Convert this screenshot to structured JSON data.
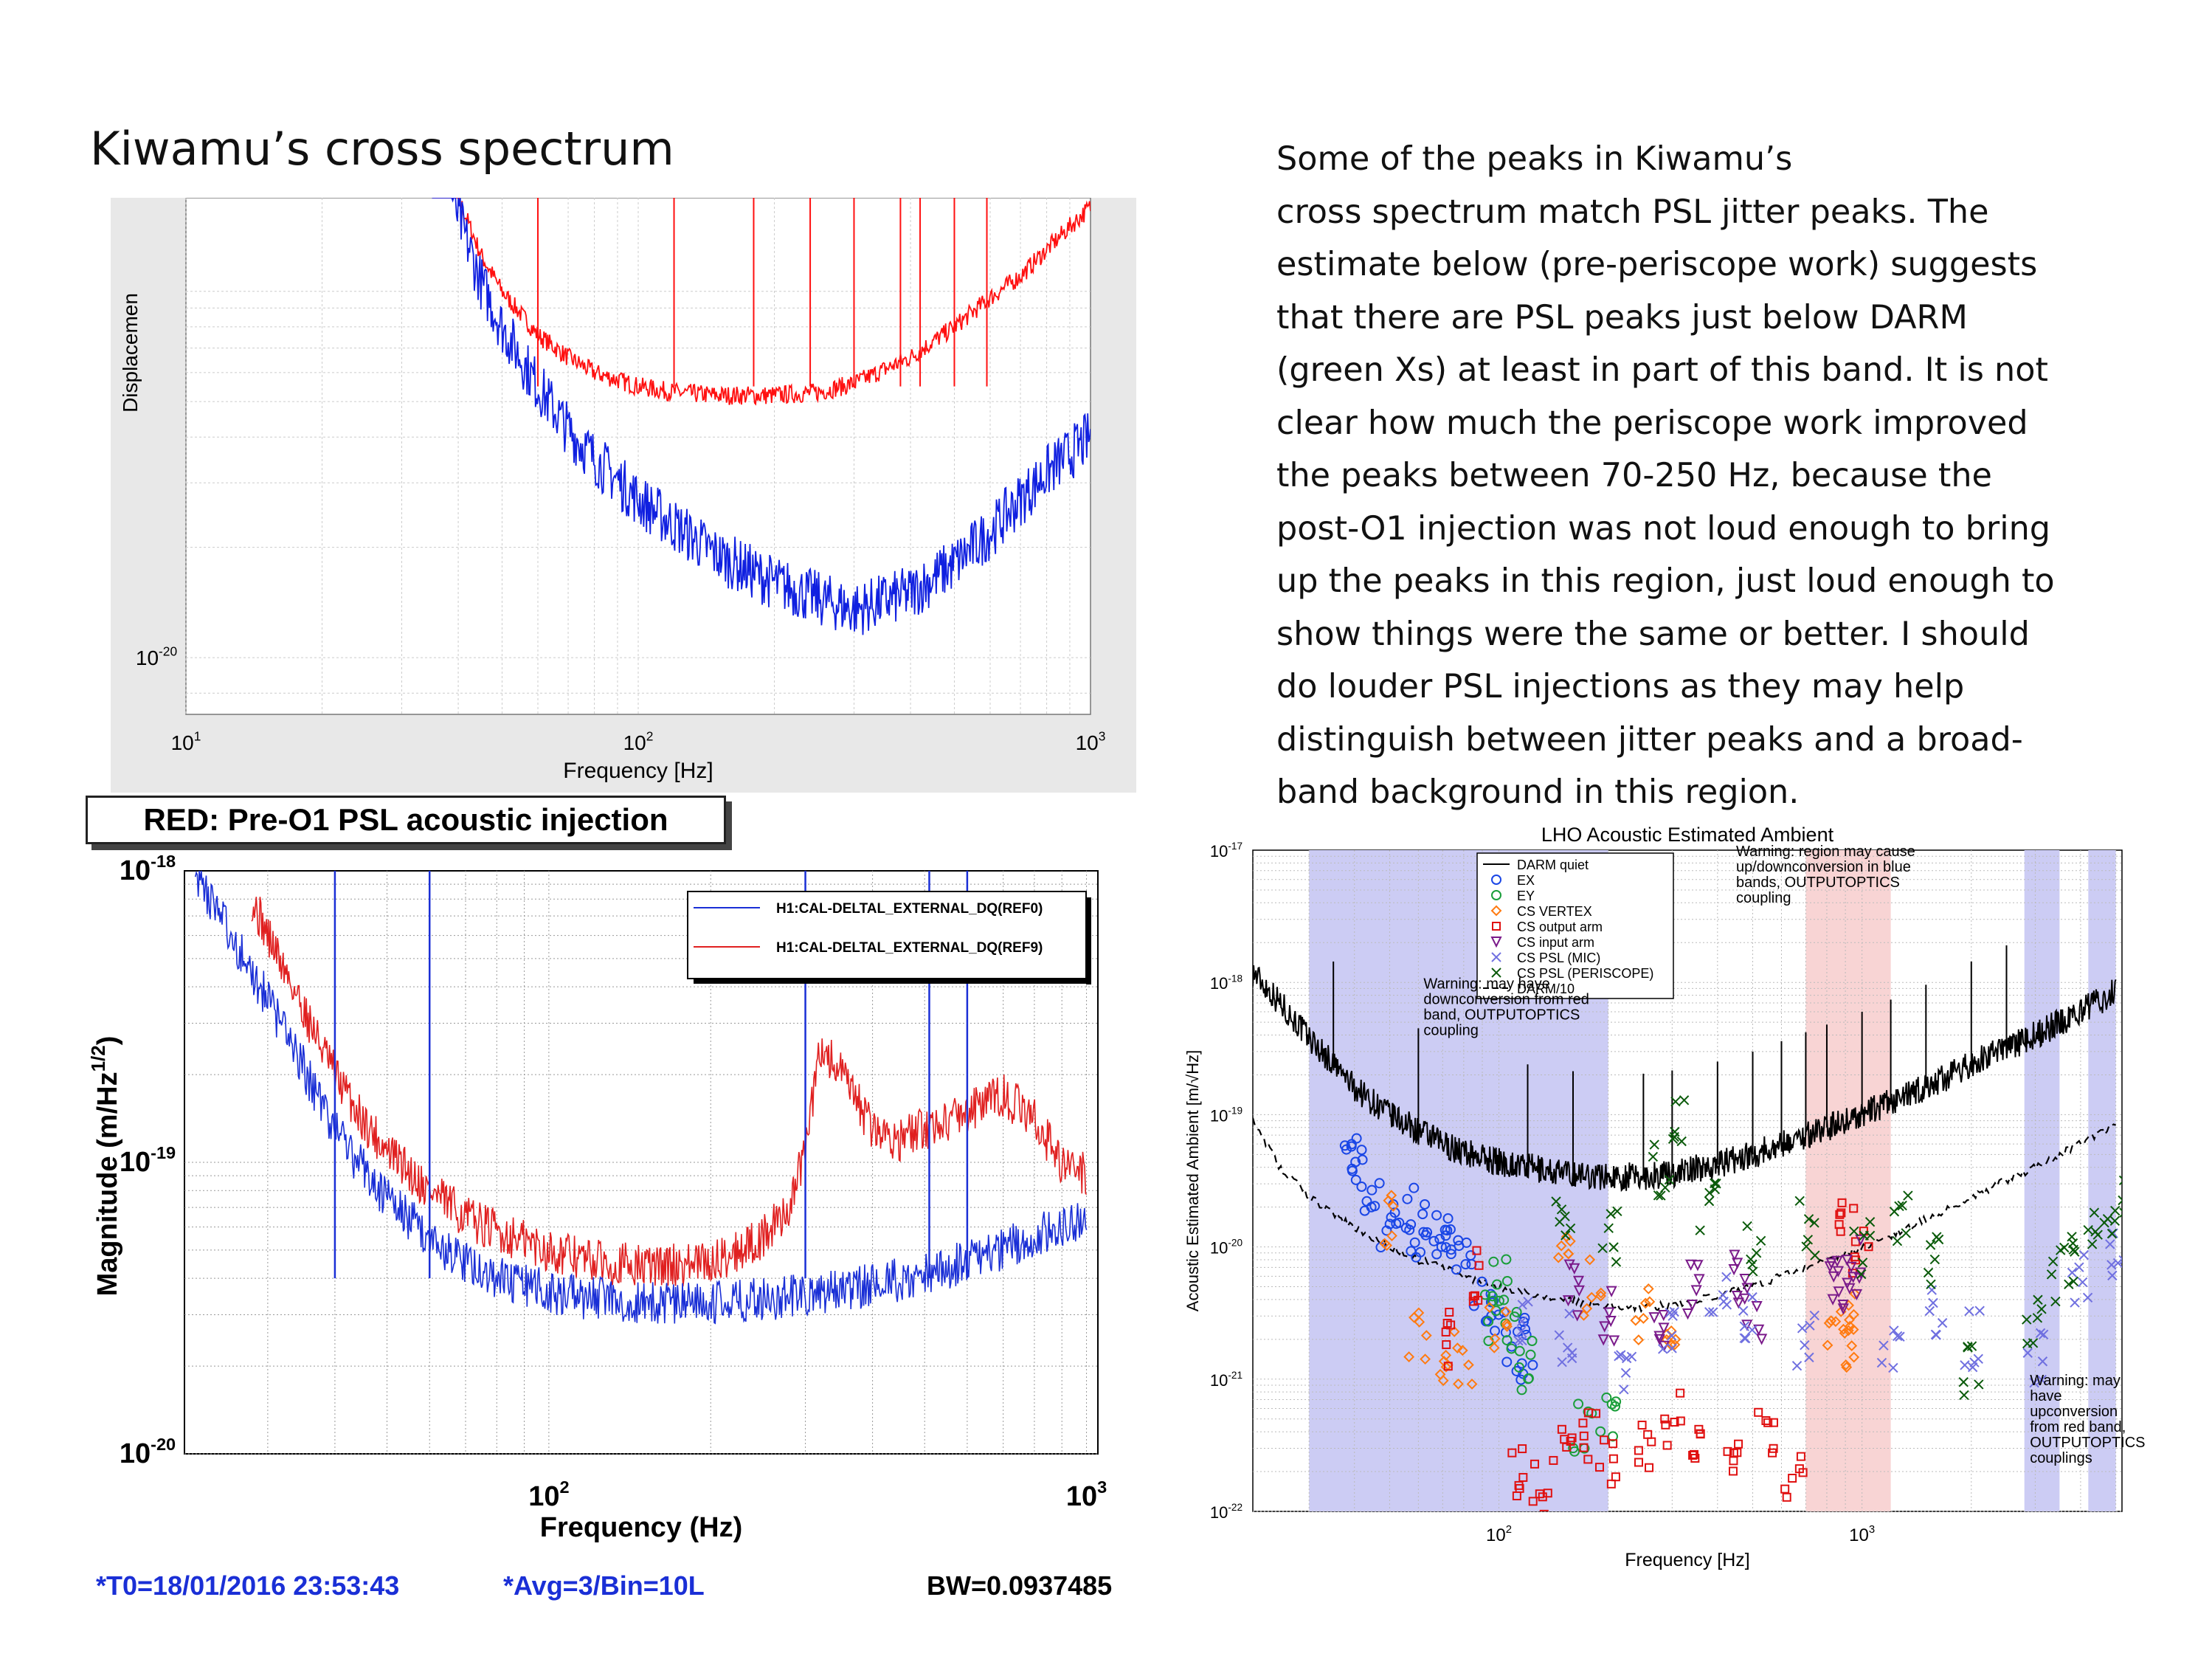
{
  "slide": {
    "title": "Kiwamu’s cross spectrum",
    "description_lines": [
      "Some of the peaks in Kiwamu’s",
      "cross spectrum match PSL jitter peaks. The",
      "estimate below (pre-periscope work) suggests",
      "that there are PSL peaks just below DARM",
      "(green Xs) at least in part of this band. It is not",
      "clear how much the periscope work improved",
      "the peaks between 70-250 Hz, because the",
      "post-O1 injection was not loud enough to bring",
      "up the peaks in this region, just loud enough to",
      "show things were the same or better. I should",
      "do louder PSL injections as they may help",
      "distinguish between jitter peaks and a broad-",
      "band background in this region."
    ],
    "caption": "RED: Pre-O1 PSL acoustic injection",
    "footer": {
      "t0": "*T0=18/01/2016 23:53:43",
      "avg": "*Avg=3/Bin=10L",
      "bw": "BW=0.0937485"
    }
  },
  "chart_data": [
    {
      "type": "line",
      "title": "",
      "xlabel": "Frequency [Hz]",
      "ylabel": "Displacemen",
      "x_scale": "log",
      "y_scale": "log",
      "xlim": [
        10,
        1000
      ],
      "x_ticks": [
        {
          "v": 10,
          "b": "10",
          "e": "1"
        },
        {
          "v": 100,
          "b": "10",
          "e": "2"
        },
        {
          "v": 1000,
          "b": "10",
          "e": "3"
        }
      ],
      "y_ticks": [
        {
          "v": 1e-20,
          "b": "10",
          "e": "-20"
        }
      ],
      "series": [
        {
          "color": "#ff1010",
          "x": [
            35,
            40,
            45,
            50,
            60,
            70,
            80,
            100,
            120,
            150,
            200,
            250,
            300,
            400,
            500,
            600,
            700,
            800,
            900,
            1000
          ],
          "y": [
            3.2e-19,
            1.8e-19,
            1.25e-19,
            1e-19,
            7.6e-20,
            6.6e-20,
            6e-20,
            5.5e-20,
            5.3e-20,
            5.2e-20,
            5.2e-20,
            5.3e-20,
            5.6e-20,
            6.6e-20,
            8e-20,
            9.6e-20,
            1.1e-19,
            1.3e-19,
            1.5e-19,
            1.7e-19
          ]
        },
        {
          "color": "#1020e0",
          "x": [
            35,
            40,
            45,
            50,
            60,
            70,
            80,
            100,
            120,
            150,
            200,
            250,
            300,
            400,
            500,
            600,
            700,
            800,
            900,
            1000
          ],
          "y": [
            3e-19,
            1.6e-19,
            1.05e-19,
            8e-20,
            5.5e-20,
            4.2e-20,
            3.5e-20,
            2.7e-20,
            2.3e-20,
            1.9e-20,
            1.6e-20,
            1.45e-20,
            1.35e-20,
            1.5e-20,
            1.8e-20,
            2.2e-20,
            2.7e-20,
            3.2e-20,
            3.6e-20,
            4e-20
          ]
        }
      ]
    },
    {
      "type": "line",
      "title": "",
      "xlabel": "Frequency (Hz)",
      "ylabel": "Magnitude (m/Hz^1/2)",
      "x_scale": "log",
      "y_scale": "log",
      "xlim": [
        21,
        1050
      ],
      "ylim": [
        1e-20,
        1e-18
      ],
      "x_ticks": [
        {
          "v": 100,
          "b": "10",
          "e": "2"
        },
        {
          "v": 1000,
          "b": "10",
          "e": "3"
        }
      ],
      "y_ticks": [
        {
          "v": 1e-18,
          "b": "10",
          "e": "-18"
        },
        {
          "v": 1e-19,
          "b": "10",
          "e": "-19"
        },
        {
          "v": 1e-20,
          "b": "10",
          "e": "-20"
        }
      ],
      "legend": "top-right",
      "series": [
        {
          "name": "H1:CAL-DELTAL_EXTERNAL_DQ(REF0)",
          "color": "#1a2fd6",
          "x": [
            22,
            25,
            28,
            30,
            33,
            36,
            40,
            45,
            50,
            60,
            70,
            80,
            100,
            120,
            150,
            200,
            250,
            300,
            400,
            500,
            600,
            700,
            800,
            900,
            1000
          ],
          "y": [
            1e-18,
            6.5e-19,
            4.5e-19,
            3.6e-19,
            2.6e-19,
            1.9e-19,
            1.3e-19,
            9.5e-20,
            7.5e-20,
            5.5e-20,
            4.5e-20,
            4e-20,
            3.6e-20,
            3.4e-20,
            3.3e-20,
            3.3e-20,
            3.4e-20,
            3.5e-20,
            3.8e-20,
            4.1e-20,
            4.6e-20,
            5e-20,
            5.6e-20,
            6.1e-20,
            6.6e-20
          ]
        },
        {
          "name": "H1:CAL-DELTAL_EXTERNAL_DQ(REF9)",
          "color": "#e02020",
          "x": [
            28,
            30,
            33,
            36,
            40,
            45,
            50,
            60,
            70,
            80,
            100,
            120,
            150,
            200,
            250,
            280,
            300,
            320,
            350,
            400,
            450,
            500,
            600,
            700,
            800,
            900,
            1000
          ],
          "y": [
            8e-19,
            6e-19,
            4.2e-19,
            3e-19,
            2e-19,
            1.4e-19,
            1.1e-19,
            8e-20,
            6.5e-20,
            5.8e-20,
            5e-20,
            4.6e-20,
            4.4e-20,
            4.5e-20,
            5.5e-20,
            7e-20,
            1.1e-19,
            2.5e-19,
            2e-19,
            1.3e-19,
            1.2e-19,
            1.3e-19,
            1.5e-19,
            1.7e-19,
            1.4e-19,
            1e-19,
            9e-20
          ]
        }
      ]
    },
    {
      "type": "scatter",
      "title": "LHO Acoustic Estimated Ambient",
      "xlabel": "Frequency [Hz]",
      "ylabel": "Acoustic Estimated Ambient [m/√Hz]",
      "x_scale": "log",
      "y_scale": "log",
      "xlim": [
        21,
        5200
      ],
      "ylim": [
        1e-22,
        1e-17
      ],
      "x_ticks": [
        {
          "v": 100,
          "b": "10",
          "e": "2"
        },
        {
          "v": 1000,
          "b": "10",
          "e": "3"
        }
      ],
      "y_ticks": [
        {
          "v": 1e-17,
          "b": "10",
          "e": "-17"
        },
        {
          "v": 1e-18,
          "b": "10",
          "e": "-18"
        },
        {
          "v": 1e-19,
          "b": "10",
          "e": "-19"
        },
        {
          "v": 1e-20,
          "b": "10",
          "e": "-20"
        },
        {
          "v": 1e-21,
          "b": "10",
          "e": "-21"
        },
        {
          "v": 1e-22,
          "b": "10",
          "e": "-22"
        }
      ],
      "legend": "top-left",
      "bands": [
        {
          "color": "#ccccf4",
          "x0": 30,
          "x1": 200
        },
        {
          "color": "#f8d4d4",
          "x0": 700,
          "x1": 1200
        },
        {
          "color": "#ccccf4",
          "x0": 2800,
          "x1": 3500
        },
        {
          "color": "#ccccf4",
          "x0": 4200,
          "x1": 5000
        }
      ],
      "annotations": [
        {
          "text": [
            "Warning: may have",
            "downconversion from red",
            "band, OUTPUTOPTICS",
            "coupling"
          ],
          "x": 62,
          "y": 9e-19
        },
        {
          "text": [
            "Warning: region may cause",
            "up/downconversion in blue",
            "bands, OUTPUTOPTICS",
            "coupling"
          ],
          "x": 450,
          "y": 9e-18
        },
        {
          "text": [
            "Warning: may",
            "have",
            "upconversion",
            "from red band,",
            "OUTPUTOPTICS",
            "couplings"
          ],
          "x": 2900,
          "y": 9e-22
        }
      ],
      "legend_entries": [
        {
          "label": "DARM quiet",
          "marker": "line",
          "color": "#000000"
        },
        {
          "label": "EX",
          "marker": "circle",
          "color": "#1a46e6"
        },
        {
          "label": "EY",
          "marker": "circle",
          "color": "#1a9e3a"
        },
        {
          "label": "CS VERTEX",
          "marker": "diamond",
          "color": "#ff7a10"
        },
        {
          "label": "CS output arm",
          "marker": "square",
          "color": "#e01010"
        },
        {
          "label": "CS input arm",
          "marker": "triangle",
          "color": "#7a1a8a"
        },
        {
          "label": "CS PSL (MIC)",
          "marker": "x",
          "color": "#7070e0"
        },
        {
          "label": "CS PSL (PERISCOPE)",
          "marker": "x",
          "color": "#0a5a0a"
        },
        {
          "label": "DARM/10",
          "marker": "dash",
          "color": "#000000"
        }
      ],
      "series": [
        {
          "name": "DARM quiet",
          "kind": "line",
          "color": "#000000",
          "x": [
            21,
            25,
            30,
            35,
            40,
            50,
            60,
            70,
            80,
            100,
            120,
            150,
            200,
            250,
            300,
            400,
            500,
            600,
            800,
            1000,
            1500,
            2000,
            3000,
            4000,
            5000
          ],
          "y": [
            1.2e-18,
            7e-19,
            3.8e-19,
            2.4e-19,
            1.6e-19,
            1e-19,
            7.5e-20,
            6e-20,
            5.2e-20,
            4.4e-20,
            4e-20,
            3.6e-20,
            3.4e-20,
            3.4e-20,
            3.6e-20,
            4.2e-20,
            5e-20,
            6e-20,
            8e-20,
            1e-19,
            1.6e-19,
            2.4e-19,
            4e-19,
            6e-19,
            8.5e-19
          ]
        },
        {
          "name": "DARM/10",
          "kind": "dash",
          "color": "#000000",
          "x": [
            21,
            25,
            30,
            35,
            40,
            50,
            60,
            70,
            80,
            100,
            120,
            150,
            200,
            250,
            300,
            400,
            500,
            600,
            800,
            1000,
            1500,
            2000,
            3000,
            4000,
            5000
          ],
          "y": [
            9e-20,
            4e-20,
            2.4e-20,
            1.8e-20,
            1.4e-20,
            1e-20,
            8e-21,
            7e-21,
            6e-21,
            5e-21,
            4.5e-21,
            4e-21,
            3.6e-21,
            3.5e-21,
            3.6e-21,
            4.2e-21,
            5e-21,
            6e-21,
            8e-21,
            1e-20,
            1.6e-20,
            2.4e-20,
            4e-20,
            6e-20,
            8.5e-20
          ]
        },
        {
          "name": "EX",
          "kind": "circle",
          "color": "#1a46e6",
          "points": [
            [
              38,
              5e-20
            ],
            [
              40,
              4.5e-20
            ],
            [
              45,
              2.5e-20
            ],
            [
              50,
              1.5e-20
            ],
            [
              55,
              1.8e-20
            ],
            [
              60,
              1.2e-20
            ],
            [
              65,
              1.4e-20
            ],
            [
              70,
              9e-21
            ],
            [
              75,
              1.3e-20
            ],
            [
              80,
              7e-21
            ],
            [
              90,
              4e-21
            ],
            [
              100,
              3e-21
            ],
            [
              110,
              1.5e-21
            ],
            [
              120,
              2e-21
            ]
          ]
        },
        {
          "name": "EY",
          "kind": "circle",
          "color": "#1a9e3a",
          "points": [
            [
              95,
              3e-21
            ],
            [
              100,
              5e-21
            ],
            [
              110,
              2e-21
            ],
            [
              120,
              1.2e-21
            ],
            [
              170,
              4e-22
            ],
            [
              200,
              6e-22
            ]
          ]
        },
        {
          "name": "CS VERTEX",
          "kind": "diamond",
          "color": "#ff7a10",
          "points": [
            [
              50,
              1.5e-20
            ],
            [
              60,
              2e-21
            ],
            [
              70,
              1e-21
            ],
            [
              80,
              1.5e-21
            ],
            [
              100,
              2.5e-21
            ],
            [
              150,
              8e-21
            ],
            [
              180,
              5e-21
            ],
            [
              250,
              3e-21
            ],
            [
              300,
              2e-21
            ],
            [
              850,
              2.5e-21
            ],
            [
              900,
              1.8e-21
            ],
            [
              950,
              3e-21
            ]
          ]
        },
        {
          "name": "CS output arm",
          "kind": "square",
          "color": "#e01010",
          "points": [
            [
              70,
              2e-21
            ],
            [
              90,
              6e-21
            ],
            [
              110,
              2e-22
            ],
            [
              130,
              1.5e-22
            ],
            [
              150,
              3e-22
            ],
            [
              180,
              4e-22
            ],
            [
              200,
              2.5e-22
            ],
            [
              250,
              3.5e-22
            ],
            [
              300,
              5e-22
            ],
            [
              350,
              3e-22
            ],
            [
              450,
              2e-22
            ],
            [
              550,
              4e-22
            ],
            [
              650,
              2e-22
            ],
            [
              900,
              1.5e-20
            ],
            [
              1000,
              8e-21
            ]
          ]
        },
        {
          "name": "CS input arm",
          "kind": "triangle",
          "color": "#7a1a8a",
          "points": [
            [
              160,
              5e-21
            ],
            [
              200,
              3e-21
            ],
            [
              280,
              2e-21
            ],
            [
              350,
              5e-21
            ],
            [
              450,
              6e-21
            ],
            [
              500,
              3e-21
            ],
            [
              850,
              6e-21
            ],
            [
              900,
              5e-21
            ],
            [
              950,
              7e-21
            ]
          ]
        },
        {
          "name": "CS PSL (MIC)",
          "kind": "x",
          "color": "#7070e0",
          "points": [
            [
              120,
              3e-21
            ],
            [
              150,
              2e-21
            ],
            [
              220,
              1e-21
            ],
            [
              300,
              2.5e-21
            ],
            [
              400,
              5e-21
            ],
            [
              500,
              3e-21
            ],
            [
              700,
              2e-21
            ],
            [
              1200,
              2e-21
            ],
            [
              1600,
              3e-21
            ],
            [
              2000,
              2e-21
            ],
            [
              3000,
              1.5e-21
            ],
            [
              4000,
              6e-21
            ],
            [
              5000,
              1e-20
            ]
          ]
        },
        {
          "name": "CS PSL (PERISCOPE)",
          "kind": "x",
          "color": "#0a5a0a",
          "points": [
            [
              150,
              2e-20
            ],
            [
              200,
              1.2e-20
            ],
            [
              280,
              4e-20
            ],
            [
              320,
              8e-20
            ],
            [
              380,
              2e-20
            ],
            [
              500,
              1e-20
            ],
            [
              700,
              1.4e-20
            ],
            [
              1000,
              1e-20
            ],
            [
              1300,
              1.5e-20
            ],
            [
              1600,
              8e-21
            ],
            [
              2000,
              1.2e-21
            ],
            [
              3000,
              3e-21
            ],
            [
              3500,
              6e-21
            ],
            [
              4000,
              9e-21
            ],
            [
              4500,
              1.2e-20
            ],
            [
              5000,
              2e-20
            ]
          ]
        }
      ]
    }
  ]
}
